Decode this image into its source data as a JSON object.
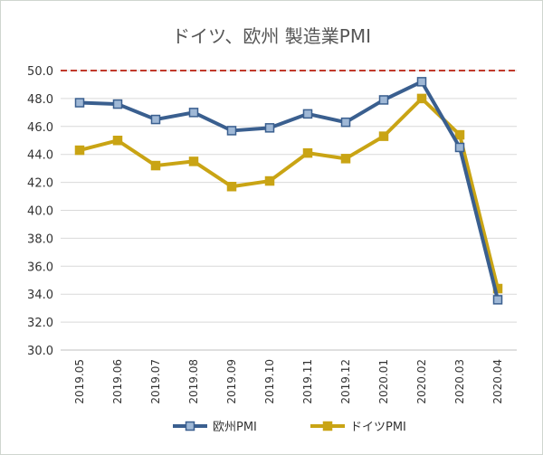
{
  "chart_data": {
    "type": "line",
    "title": "ドイツ、欧州 製造業PMI",
    "xlabel": "",
    "ylabel": "",
    "categories": [
      "2019.05",
      "2019.06",
      "2019.07",
      "2019.08",
      "2019.09",
      "2019.10",
      "2019.11",
      "2019.12",
      "2020.01",
      "2020.02",
      "2020.03",
      "2020.04"
    ],
    "ylim": [
      30,
      50
    ],
    "yticks": [
      "30.0",
      "32.0",
      "34.0",
      "36.0",
      "38.0",
      "40.0",
      "42.0",
      "44.0",
      "46.0",
      "48.0",
      "50.0"
    ],
    "reference_line": {
      "value": 50,
      "style": "dashed",
      "color": "#c0392b"
    },
    "grid": true,
    "legend_position": "bottom",
    "series": [
      {
        "name": "欧州PMI",
        "color": "#3a5f8f",
        "marker": "square",
        "values": [
          47.7,
          47.6,
          46.5,
          47.0,
          45.7,
          45.9,
          46.9,
          46.3,
          47.9,
          49.2,
          44.5,
          33.6
        ]
      },
      {
        "name": "ドイツPMI",
        "color": "#c9a414",
        "marker": "square",
        "values": [
          44.3,
          45.0,
          43.2,
          43.5,
          41.7,
          42.1,
          44.1,
          43.7,
          45.3,
          48.0,
          45.4,
          34.4
        ]
      }
    ]
  }
}
